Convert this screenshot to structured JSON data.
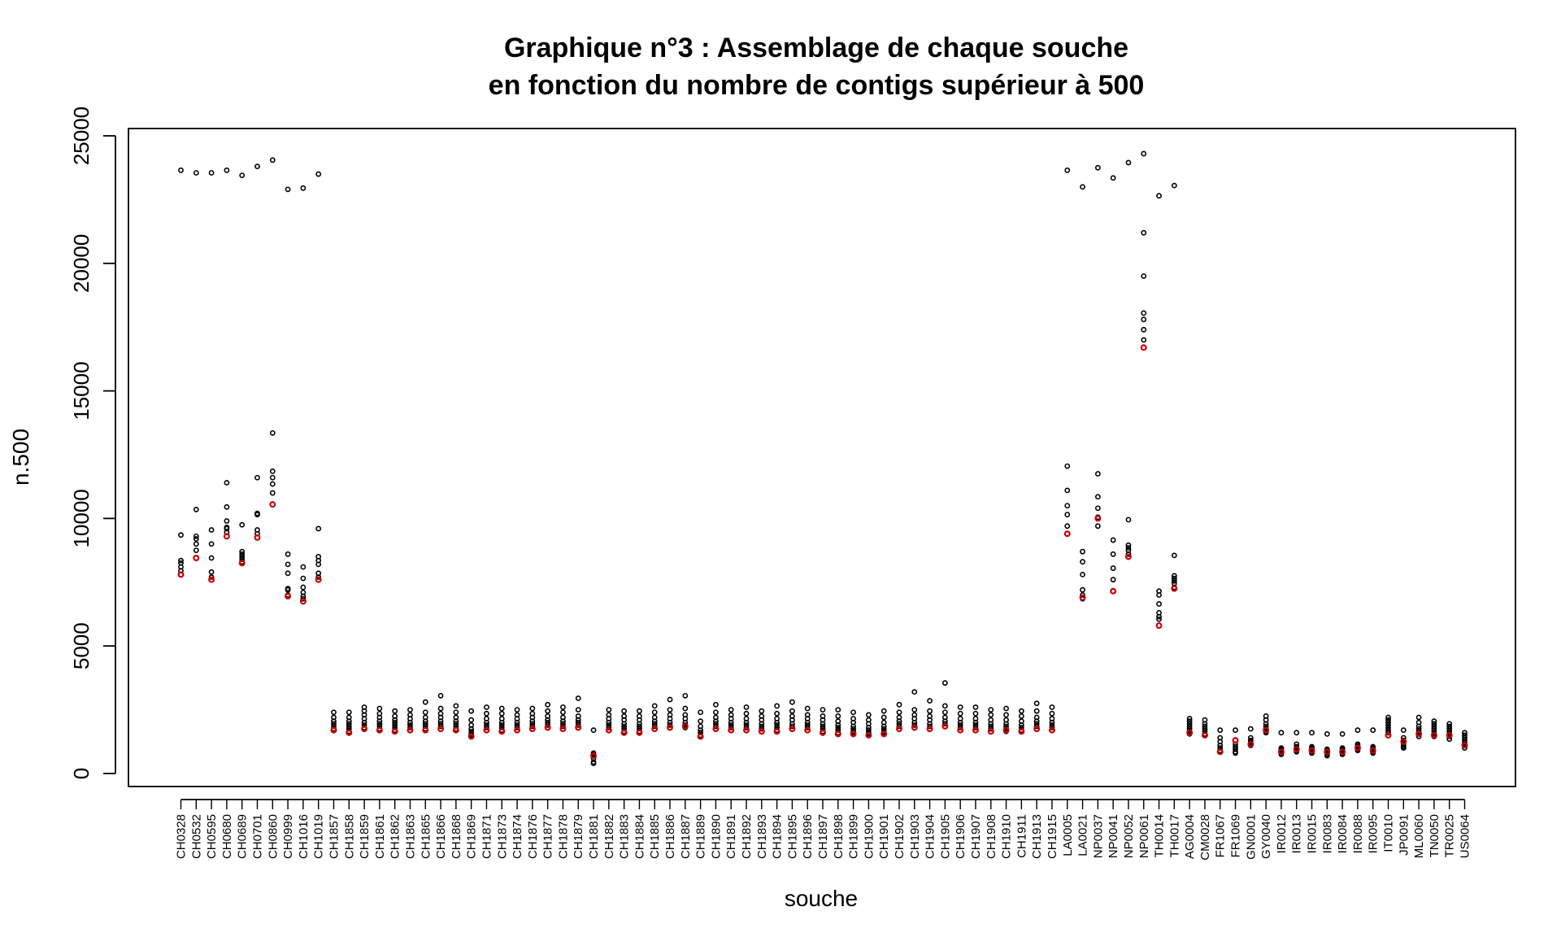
{
  "chart_data": {
    "type": "scatter",
    "title": "Graphique n°3 : Assemblage de chaque souche",
    "subtitle": "en fonction du nombre de contigs supérieur à 500",
    "xlabel": "souche",
    "ylabel": "n.500",
    "ylim": [
      -500,
      25500
    ],
    "yticks": [
      0,
      5000,
      10000,
      15000,
      20000,
      25000
    ],
    "grid": false,
    "legend": "none",
    "colors": {
      "points": "#000000",
      "highlight": "#cc0000"
    },
    "categories": [
      "CH0328",
      "CH0532",
      "CH0595",
      "CH0680",
      "CH0689",
      "CH0701",
      "CH0860",
      "CH0999",
      "CH1016",
      "CH1019",
      "CH1857",
      "CH1858",
      "CH1859",
      "CH1861",
      "CH1862",
      "CH1863",
      "CH1865",
      "CH1866",
      "CH1868",
      "CH1869",
      "CH1871",
      "CH1873",
      "CH1874",
      "CH1876",
      "CH1877",
      "CH1878",
      "CH1879",
      "CH1881",
      "CH1882",
      "CH1883",
      "CH1884",
      "CH1885",
      "CH1886",
      "CH1887",
      "CH1889",
      "CH1890",
      "CH1891",
      "CH1892",
      "CH1893",
      "CH1894",
      "CH1895",
      "CH1896",
      "CH1897",
      "CH1898",
      "CH1899",
      "CH1900",
      "CH1901",
      "CH1902",
      "CH1903",
      "CH1904",
      "CH1905",
      "CH1906",
      "CH1907",
      "CH1908",
      "CH1910",
      "CH1911",
      "CH1913",
      "CH1915",
      "LA0005",
      "LA0021",
      "NP0037",
      "NP0041",
      "NP0052",
      "NP0061",
      "TH0014",
      "TH0017",
      "AG0004",
      "CM0028",
      "FR1067",
      "FR1069",
      "GN0001",
      "GY0040",
      "IR0012",
      "IR0013",
      "IR0015",
      "IR0083",
      "IR0084",
      "IR0088",
      "IR0095",
      "IT0010",
      "JP0091",
      "ML0060",
      "TN0050",
      "TR0025",
      "US0064"
    ],
    "series": [
      {
        "values": [
          [
            23650,
            9350,
            8350,
            8250,
            8100,
            7950,
            7800
          ],
          [
            23550,
            10350,
            9300,
            9200,
            9000,
            8750
          ],
          [
            23550,
            9550,
            9000,
            8450,
            7900,
            7700
          ],
          [
            23650,
            11400,
            10450,
            9900,
            9650,
            9600,
            9450
          ],
          [
            23450,
            9750,
            8700,
            8600,
            8500,
            8400,
            8300
          ],
          [
            23800,
            11600,
            10200,
            10150,
            9550,
            9400
          ],
          [
            24050,
            13350,
            11850,
            11600,
            11350,
            11000
          ],
          [
            22900,
            8600,
            8200,
            7850,
            7250,
            7200,
            7000
          ],
          [
            22950,
            8100,
            7650,
            7300,
            7100,
            6950,
            6850
          ],
          [
            23500,
            9600,
            8500,
            8350,
            8200,
            7850,
            7700
          ],
          [
            2400,
            2200,
            2050,
            1950,
            1850,
            1750,
            1700
          ],
          [
            2400,
            2200,
            2050,
            1950,
            1850,
            1750,
            1650
          ],
          [
            2600,
            2450,
            2300,
            2150,
            2000,
            1900,
            1800
          ],
          [
            2550,
            2350,
            2200,
            2050,
            1950,
            1850,
            1750
          ],
          [
            2450,
            2250,
            2100,
            2000,
            1900,
            1800,
            1700
          ],
          [
            2500,
            2300,
            2150,
            2000,
            1900,
            1800,
            1700
          ],
          [
            2800,
            2400,
            2200,
            2050,
            1950,
            1850,
            1750
          ],
          [
            3050,
            2550,
            2350,
            2200,
            2050,
            1950,
            1850
          ],
          [
            2650,
            2400,
            2200,
            2050,
            1950,
            1850,
            1750
          ],
          [
            2450,
            2100,
            1900,
            1750,
            1650,
            1550,
            1500
          ],
          [
            2600,
            2350,
            2150,
            2000,
            1900,
            1800,
            1700
          ],
          [
            2550,
            2350,
            2150,
            2000,
            1900,
            1800,
            1700
          ],
          [
            2500,
            2300,
            2150,
            2000,
            1900,
            1800,
            1700
          ],
          [
            2550,
            2350,
            2200,
            2050,
            1950,
            1850,
            1750
          ],
          [
            2700,
            2450,
            2250,
            2100,
            2000,
            1900,
            1800
          ],
          [
            2600,
            2400,
            2200,
            2050,
            1950,
            1850,
            1750
          ],
          [
            2950,
            2500,
            2250,
            2100,
            2000,
            1900,
            1800
          ],
          [
            1700,
            800,
            750,
            700,
            600,
            450,
            400
          ],
          [
            2500,
            2300,
            2150,
            2000,
            1900,
            1800,
            1700
          ],
          [
            2450,
            2250,
            2100,
            1950,
            1850,
            1750,
            1650
          ],
          [
            2450,
            2250,
            2100,
            1950,
            1850,
            1750,
            1650
          ],
          [
            2650,
            2400,
            2200,
            2050,
            1950,
            1850,
            1750
          ],
          [
            2900,
            2500,
            2300,
            2150,
            2000,
            1900,
            1800
          ],
          [
            3050,
            2550,
            2300,
            2150,
            2000,
            1900,
            1800
          ],
          [
            2400,
            2050,
            1850,
            1700,
            1600,
            1500,
            1450
          ],
          [
            2700,
            2400,
            2200,
            2050,
            1950,
            1850,
            1750
          ],
          [
            2500,
            2300,
            2150,
            2000,
            1900,
            1800,
            1700
          ],
          [
            2600,
            2350,
            2150,
            2000,
            1900,
            1800,
            1700
          ],
          [
            2450,
            2250,
            2100,
            1950,
            1850,
            1750,
            1650
          ],
          [
            2650,
            2350,
            2150,
            2000,
            1900,
            1800,
            1700
          ],
          [
            2800,
            2450,
            2250,
            2100,
            1950,
            1850,
            1750
          ],
          [
            2550,
            2300,
            2150,
            2000,
            1900,
            1800,
            1700
          ],
          [
            2500,
            2250,
            2100,
            1950,
            1850,
            1750,
            1650
          ],
          [
            2500,
            2250,
            2050,
            1900,
            1800,
            1700,
            1600
          ],
          [
            2400,
            2150,
            2000,
            1850,
            1750,
            1650,
            1600
          ],
          [
            2300,
            2100,
            1950,
            1800,
            1700,
            1600,
            1550
          ],
          [
            2450,
            2200,
            2000,
            1850,
            1750,
            1650,
            1600
          ],
          [
            2700,
            2400,
            2200,
            2050,
            1950,
            1850,
            1750
          ],
          [
            3200,
            2500,
            2300,
            2150,
            2000,
            1900,
            1800
          ],
          [
            2850,
            2450,
            2250,
            2100,
            1950,
            1850,
            1750
          ],
          [
            3550,
            2650,
            2400,
            2200,
            2050,
            1950,
            1850
          ],
          [
            2600,
            2350,
            2150,
            2000,
            1900,
            1800,
            1700
          ],
          [
            2600,
            2350,
            2150,
            2000,
            1900,
            1800,
            1700
          ],
          [
            2500,
            2300,
            2100,
            1950,
            1850,
            1750,
            1650
          ],
          [
            2550,
            2300,
            2100,
            1950,
            1850,
            1750,
            1650
          ],
          [
            2450,
            2250,
            2050,
            1900,
            1800,
            1700,
            1650
          ],
          [
            2750,
            2450,
            2200,
            2050,
            1950,
            1850,
            1750
          ],
          [
            2600,
            2350,
            2150,
            2000,
            1900,
            1800,
            1700
          ],
          [
            23650,
            12050,
            11100,
            10500,
            10150,
            9700,
            9400
          ],
          [
            23000,
            8700,
            8300,
            7800,
            7200,
            7000,
            6850
          ],
          [
            23750,
            11750,
            10850,
            10400,
            10050,
            9700
          ],
          [
            23350,
            9150,
            8600,
            8050,
            7600,
            7150
          ],
          [
            23950,
            9950,
            8950,
            8850,
            8750,
            8600,
            8500
          ],
          [
            24300,
            21200,
            19500,
            18050,
            17800,
            17400,
            17000
          ],
          [
            22650,
            7150,
            7000,
            6650,
            6300,
            6150,
            6050
          ],
          [
            23050,
            8550,
            7750,
            7650,
            7550,
            7450,
            7300
          ],
          [
            2150,
            2050,
            1950,
            1850,
            1750,
            1650,
            1550
          ],
          [
            2100,
            1950,
            1850,
            1750,
            1650,
            1550,
            1500
          ],
          [
            1700,
            1400,
            1250,
            1100,
            1000,
            900,
            850
          ],
          [
            1700,
            1300,
            1150,
            1050,
            950,
            850,
            800
          ],
          [
            1750,
            1400,
            1300,
            1250,
            1200,
            1150,
            1100
          ],
          [
            2250,
            2100,
            1950,
            1850,
            1750,
            1650,
            1600
          ],
          [
            1600,
            1000,
            950,
            900,
            850,
            800,
            750
          ],
          [
            1600,
            1150,
            1050,
            1000,
            950,
            900,
            850
          ],
          [
            1600,
            1050,
            1000,
            950,
            900,
            850,
            800
          ],
          [
            1550,
            950,
            900,
            850,
            800,
            750,
            700
          ],
          [
            1550,
            1000,
            950,
            900,
            850,
            800,
            750
          ],
          [
            1700,
            1150,
            1100,
            1050,
            1000,
            950,
            900
          ],
          [
            1700,
            1050,
            1000,
            950,
            900,
            850,
            800
          ],
          [
            2200,
            2100,
            2000,
            1900,
            1800,
            1700,
            1600
          ],
          [
            1700,
            1400,
            1300,
            1200,
            1100,
            1050,
            1000
          ],
          [
            2200,
            2000,
            1850,
            1750,
            1650,
            1550,
            1450
          ],
          [
            2050,
            1950,
            1850,
            1750,
            1650,
            1550,
            1450
          ],
          [
            1950,
            1850,
            1750,
            1650,
            1550,
            1450,
            1350
          ],
          [
            1600,
            1500,
            1400,
            1300,
            1200,
            1100,
            1000
          ]
        ]
      },
      {
        "values": [
          7800,
          8450,
          7600,
          9300,
          8250,
          9250,
          10550,
          6950,
          6750,
          7600,
          1700,
          1600,
          1750,
          1700,
          1650,
          1700,
          1700,
          1750,
          1700,
          1450,
          1700,
          1650,
          1700,
          1750,
          1800,
          1750,
          1800,
          700,
          1700,
          1600,
          1600,
          1750,
          1800,
          1850,
          1450,
          1750,
          1700,
          1700,
          1650,
          1650,
          1750,
          1700,
          1600,
          1550,
          1550,
          1500,
          1550,
          1750,
          1800,
          1750,
          1850,
          1700,
          1700,
          1650,
          1700,
          1650,
          1750,
          1700,
          9400,
          6900,
          10000,
          7150,
          8500,
          16700,
          5800,
          7250,
          1600,
          1500,
          850,
          1300,
          1150,
          1700,
          850,
          950,
          900,
          850,
          850,
          1000,
          900,
          1500,
          1250,
          1550,
          1500,
          1500,
          1100
        ]
      }
    ]
  }
}
